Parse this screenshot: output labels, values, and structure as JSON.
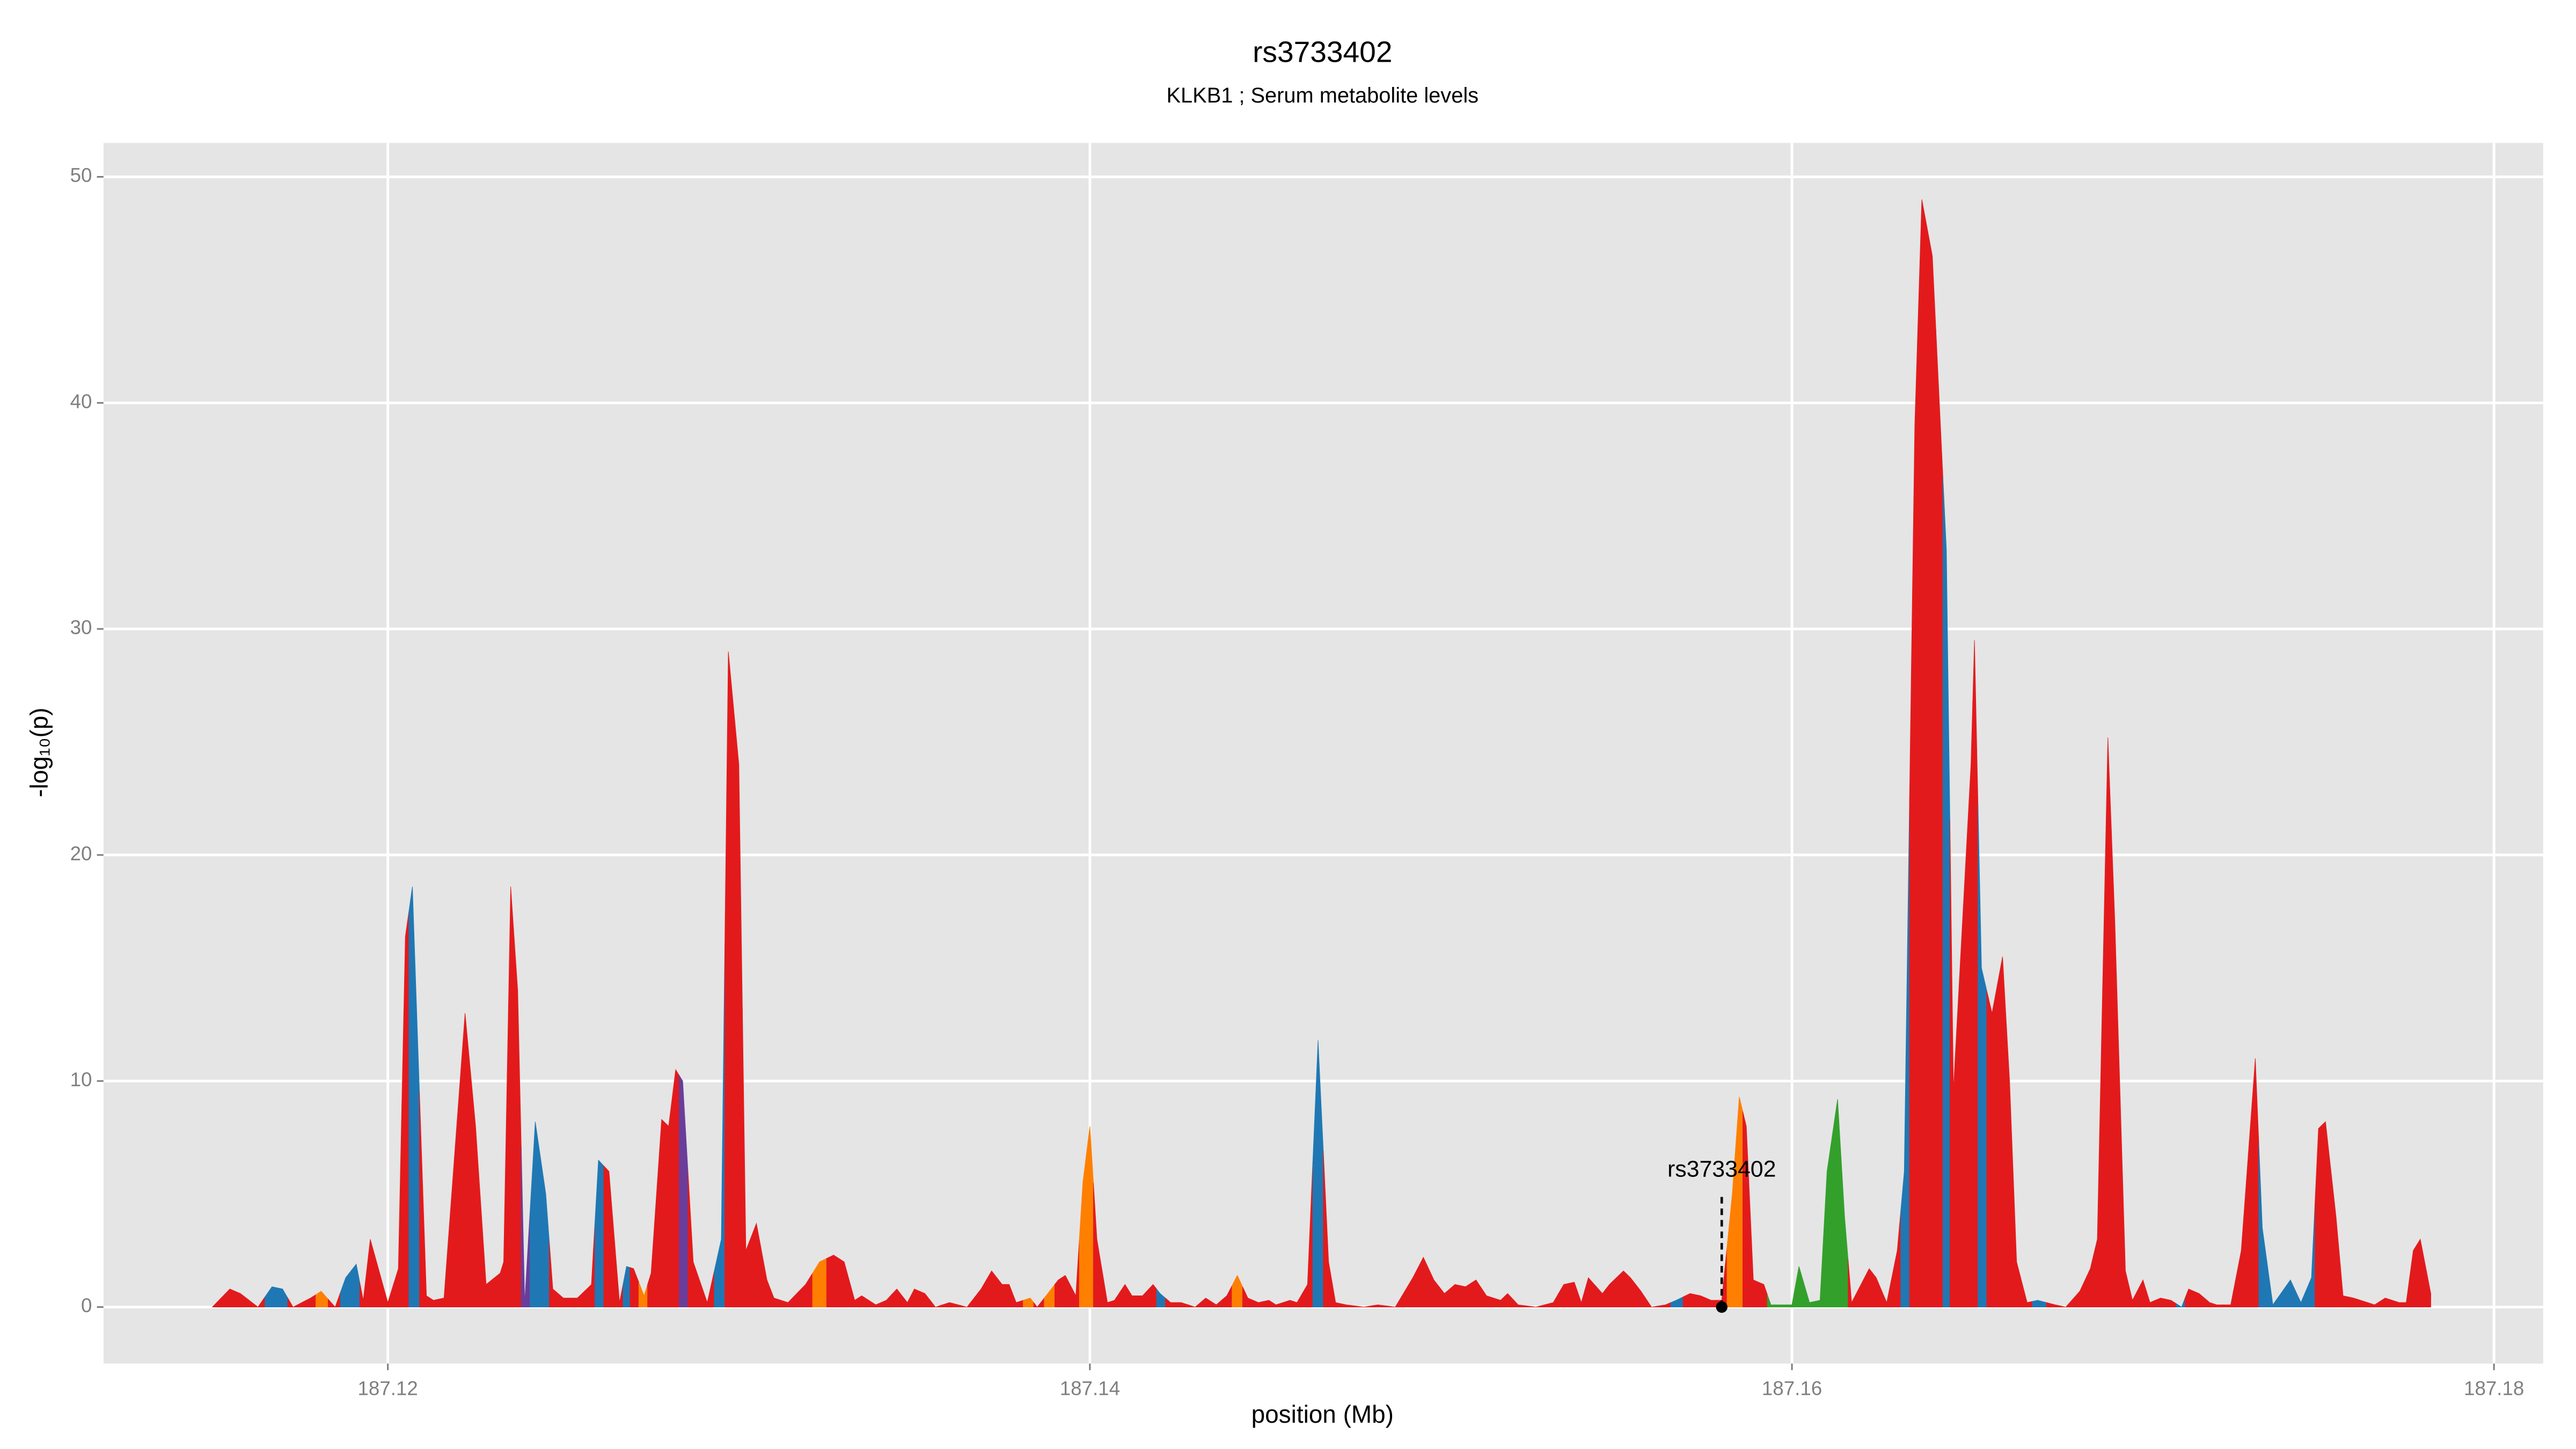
{
  "chart_data": {
    "type": "area",
    "title": "rs3733402",
    "subtitle": "KLKB1 ; Serum metabolite levels",
    "x_label": "position (Mb)",
    "y_label": "-log₁₀(p)",
    "xlim": [
      187.1119,
      187.1814
    ],
    "ylim": [
      -2.5,
      51.5
    ],
    "xticks": [
      187.12,
      187.14,
      187.16,
      187.18
    ],
    "yticks": [
      0,
      10,
      20,
      30,
      40,
      50
    ],
    "grid": true,
    "annotation": {
      "label": "rs3733402",
      "x": 187.158,
      "y": 0
    },
    "x": [
      187.115,
      187.1155,
      187.1158,
      187.1163,
      187.1167,
      187.117,
      187.1173,
      187.1178,
      187.1181,
      187.1185,
      187.1188,
      187.1191,
      187.1193,
      187.1195,
      187.12,
      187.1203,
      187.1205,
      187.1207,
      187.1211,
      187.1213,
      187.1216,
      187.1222,
      187.1225,
      187.1228,
      187.1232,
      187.1233,
      187.1235,
      187.1237,
      187.1239,
      187.1242,
      187.1245,
      187.1247,
      187.125,
      187.1254,
      187.1258,
      187.126,
      187.1263,
      187.1266,
      187.1268,
      187.127,
      187.1273,
      187.1275,
      187.1278,
      187.128,
      187.1282,
      187.1284,
      187.1287,
      187.1291,
      187.1295,
      187.1297,
      187.13,
      187.1302,
      187.1305,
      187.1308,
      187.131,
      187.1314,
      187.1319,
      187.1323,
      187.1327,
      187.133,
      187.1333,
      187.1335,
      187.1339,
      187.1342,
      187.1345,
      187.1348,
      187.135,
      187.1353,
      187.1356,
      187.136,
      187.1365,
      187.1369,
      187.1372,
      187.1375,
      187.1377,
      187.1379,
      187.1383,
      187.1385,
      187.1389,
      187.1391,
      187.1393,
      187.1396,
      187.1398,
      187.14,
      187.1402,
      187.1405,
      187.1407,
      187.141,
      187.1412,
      187.1415,
      187.1418,
      187.142,
      187.1423,
      187.1426,
      187.143,
      187.1433,
      187.1436,
      187.1439,
      187.1442,
      187.1445,
      187.1448,
      187.1451,
      187.1453,
      187.1457,
      187.1459,
      187.1462,
      187.1465,
      187.1468,
      187.147,
      187.1473,
      187.1478,
      187.1482,
      187.1487,
      187.1492,
      187.1495,
      187.1498,
      187.1501,
      187.1504,
      187.1507,
      187.151,
      187.1513,
      187.1517,
      187.1519,
      187.1522,
      187.1527,
      187.1532,
      187.1535,
      187.1538,
      187.154,
      187.1542,
      187.1546,
      187.1548,
      187.1552,
      187.1554,
      187.1557,
      187.156,
      187.1564,
      187.1567,
      187.1571,
      187.1574,
      187.1577,
      187.158,
      187.1583,
      187.1585,
      187.1587,
      187.1589,
      187.1592,
      187.1594,
      187.16,
      187.1602,
      187.1605,
      187.1608,
      187.161,
      187.1613,
      187.1615,
      187.1617,
      187.1619,
      187.1622,
      187.1624,
      187.1627,
      187.163,
      187.1632,
      187.1635,
      187.1637,
      187.164,
      187.1642,
      187.1644,
      187.1646,
      187.1651,
      187.1652,
      187.1654,
      187.1657,
      187.166,
      187.1662,
      187.1664,
      187.1667,
      187.167,
      187.1675,
      187.1678,
      187.1682,
      187.1685,
      187.1687,
      187.169,
      187.1692,
      187.1695,
      187.1697,
      187.17,
      187.1702,
      187.1705,
      187.1708,
      187.1711,
      187.1713,
      187.1716,
      187.1719,
      187.1721,
      187.1725,
      187.1728,
      187.1732,
      187.1734,
      187.1737,
      187.1742,
      187.1745,
      187.1748,
      187.175,
      187.1752,
      187.1755,
      187.1757,
      187.176,
      187.1764,
      187.1766,
      187.1769,
      187.1773,
      187.1775,
      187.1777,
      187.1779,
      187.1782
    ],
    "values": [
      0,
      0.8,
      0.6,
      0,
      0.9,
      0.8,
      0,
      0.4,
      0.7,
      0,
      1.3,
      1.9,
      0.3,
      3,
      0.2,
      1.7,
      16.4,
      18.6,
      0.5,
      0.3,
      0.4,
      13,
      8,
      1,
      1.5,
      2,
      18.6,
      14,
      0.2,
      8.2,
      5,
      0.8,
      0.4,
      0.4,
      1,
      6.5,
      6,
      0.2,
      1.8,
      1.7,
      0.5,
      1.5,
      8.3,
      8,
      10.5,
      10,
      2,
      0.2,
      3,
      29,
      24,
      2.5,
      3.7,
      1.2,
      0.4,
      0.2,
      1,
      2,
      2.3,
      2,
      0.3,
      0.5,
      0.1,
      0.3,
      0.8,
      0.2,
      0.8,
      0.6,
      0,
      0.2,
      0,
      0.8,
      1.6,
      1,
      1,
      0.2,
      0.4,
      0,
      0.8,
      1.2,
      1.4,
      0.5,
      5.5,
      8,
      3,
      0.2,
      0.3,
      1,
      0.5,
      0.5,
      1,
      0.6,
      0.2,
      0.2,
      0,
      0.4,
      0.1,
      0.5,
      1.4,
      0.4,
      0.2,
      0.3,
      0.1,
      0.3,
      0.2,
      1,
      11.8,
      2,
      0.2,
      0.1,
      0,
      0.1,
      0,
      1.3,
      2.2,
      1.2,
      0.6,
      1,
      0.9,
      1.2,
      0.5,
      0.3,
      0.6,
      0.1,
      0,
      0.2,
      1,
      1.1,
      0.2,
      1.3,
      0.6,
      1,
      1.6,
      1.3,
      0.7,
      0,
      0.1,
      0.3,
      0.6,
      0.5,
      0.3,
      0.3,
      5,
      9.3,
      8,
      1.2,
      1,
      0.1,
      0.1,
      1.8,
      0.2,
      0.3,
      6,
      9.2,
      4,
      0.2,
      0.8,
      1.7,
      1.3,
      0.2,
      2.5,
      6,
      39,
      49,
      46.5,
      40,
      33.5,
      9.6,
      24,
      29.5,
      15,
      13,
      15.5,
      10,
      2,
      0.2,
      0.3,
      0.1,
      0,
      0.7,
      1.7,
      3,
      25.2,
      17,
      1.6,
      0.3,
      1.2,
      0.2,
      0.4,
      0.3,
      0,
      0.8,
      0.6,
      0.2,
      0.1,
      0.1,
      2.5,
      11,
      3.5,
      0.1,
      1.2,
      0.2,
      1.3,
      7.9,
      8.2,
      4,
      0.5,
      0.4,
      0.2,
      0.1,
      0.4,
      0.2,
      0.2,
      2.5,
      3,
      0.6
    ],
    "colors": [
      "#e31a1c",
      "#e31a1c",
      "#e31a1c",
      "#e31a1c",
      "#1f78b4",
      "#1f78b4",
      "#e31a1c",
      "#e31a1c",
      "#ff7f00",
      "#e31a1c",
      "#1f78b4",
      "#1f78b4",
      "#e31a1c",
      "#e31a1c",
      "#e31a1c",
      "#e31a1c",
      "#e31a1c",
      "#1f78b4",
      "#e31a1c",
      "#e31a1c",
      "#e31a1c",
      "#e31a1c",
      "#e31a1c",
      "#e31a1c",
      "#e31a1c",
      "#e31a1c",
      "#e31a1c",
      "#e31a1c",
      "#6a3d9a",
      "#1f78b4",
      "#1f78b4",
      "#e31a1c",
      "#e31a1c",
      "#e31a1c",
      "#e31a1c",
      "#1f78b4",
      "#e31a1c",
      "#e31a1c",
      "#1f78b4",
      "#e31a1c",
      "#ff7f00",
      "#e31a1c",
      "#e31a1c",
      "#e31a1c",
      "#e31a1c",
      "#6a3d9a",
      "#e31a1c",
      "#e31a1c",
      "#1f78b4",
      "#e31a1c",
      "#e31a1c",
      "#e31a1c",
      "#e31a1c",
      "#e31a1c",
      "#e31a1c",
      "#e31a1c",
      "#e31a1c",
      "#ff7f00",
      "#e31a1c",
      "#e31a1c",
      "#e31a1c",
      "#e31a1c",
      "#e31a1c",
      "#e31a1c",
      "#e31a1c",
      "#e31a1c",
      "#e31a1c",
      "#e31a1c",
      "#e31a1c",
      "#e31a1c",
      "#e31a1c",
      "#e31a1c",
      "#e31a1c",
      "#e31a1c",
      "#e31a1c",
      "#e31a1c",
      "#ff7f00",
      "#e31a1c",
      "#ff7f00",
      "#e31a1c",
      "#e31a1c",
      "#e31a1c",
      "#ff7f00",
      "#ff7f00",
      "#e31a1c",
      "#e31a1c",
      "#e31a1c",
      "#e31a1c",
      "#e31a1c",
      "#e31a1c",
      "#e31a1c",
      "#1f78b4",
      "#e31a1c",
      "#e31a1c",
      "#e31a1c",
      "#e31a1c",
      "#e31a1c",
      "#e31a1c",
      "#ff7f00",
      "#e31a1c",
      "#e31a1c",
      "#e31a1c",
      "#e31a1c",
      "#e31a1c",
      "#e31a1c",
      "#e31a1c",
      "#1f78b4",
      "#e31a1c",
      "#e31a1c",
      "#e31a1c",
      "#e31a1c",
      "#e31a1c",
      "#e31a1c",
      "#e31a1c",
      "#e31a1c",
      "#e31a1c",
      "#e31a1c",
      "#e31a1c",
      "#e31a1c",
      "#e31a1c",
      "#e31a1c",
      "#e31a1c",
      "#e31a1c",
      "#e31a1c",
      "#e31a1c",
      "#e31a1c",
      "#e31a1c",
      "#e31a1c",
      "#e31a1c",
      "#e31a1c",
      "#e31a1c",
      "#e31a1c",
      "#e31a1c",
      "#e31a1c",
      "#e31a1c",
      "#e31a1c",
      "#e31a1c",
      "#1f78b4",
      "#e31a1c",
      "#e31a1c",
      "#e31a1c",
      "#e31a1c",
      "#ff7f00",
      "#ff7f00",
      "#e31a1c",
      "#e31a1c",
      "#e31a1c",
      "#33a02c",
      "#33a02c",
      "#33a02c",
      "#33a02c",
      "#33a02c",
      "#33a02c",
      "#33a02c",
      "#33a02c",
      "#e31a1c",
      "#e31a1c",
      "#e31a1c",
      "#e31a1c",
      "#e31a1c",
      "#e31a1c",
      "#1f78b4",
      "#e31a1c",
      "#e31a1c",
      "#e31a1c",
      "#e31a1c",
      "#1f78b4",
      "#e31a1c",
      "#e31a1c",
      "#e31a1c",
      "#1f78b4",
      "#e31a1c",
      "#e31a1c",
      "#e31a1c",
      "#e31a1c",
      "#e31a1c",
      "#1f78b4",
      "#e31a1c",
      "#e31a1c",
      "#e31a1c",
      "#e31a1c",
      "#e31a1c",
      "#e31a1c",
      "#e31a1c",
      "#e31a1c",
      "#e31a1c",
      "#e31a1c",
      "#e31a1c",
      "#e31a1c",
      "#e31a1c",
      "#1f78b4",
      "#e31a1c",
      "#e31a1c",
      "#e31a1c",
      "#e31a1c",
      "#e31a1c",
      "#e31a1c",
      "#e31a1c",
      "#1f78b4",
      "#1f78b4",
      "#1f78b4",
      "#1f78b4",
      "#1f78b4",
      "#e31a1c",
      "#e31a1c",
      "#e31a1c",
      "#e31a1c",
      "#e31a1c",
      "#e31a1c",
      "#e31a1c",
      "#e31a1c",
      "#e31a1c",
      "#e31a1c",
      "#e31a1c",
      "#e31a1c",
      "#e31a1c"
    ]
  }
}
